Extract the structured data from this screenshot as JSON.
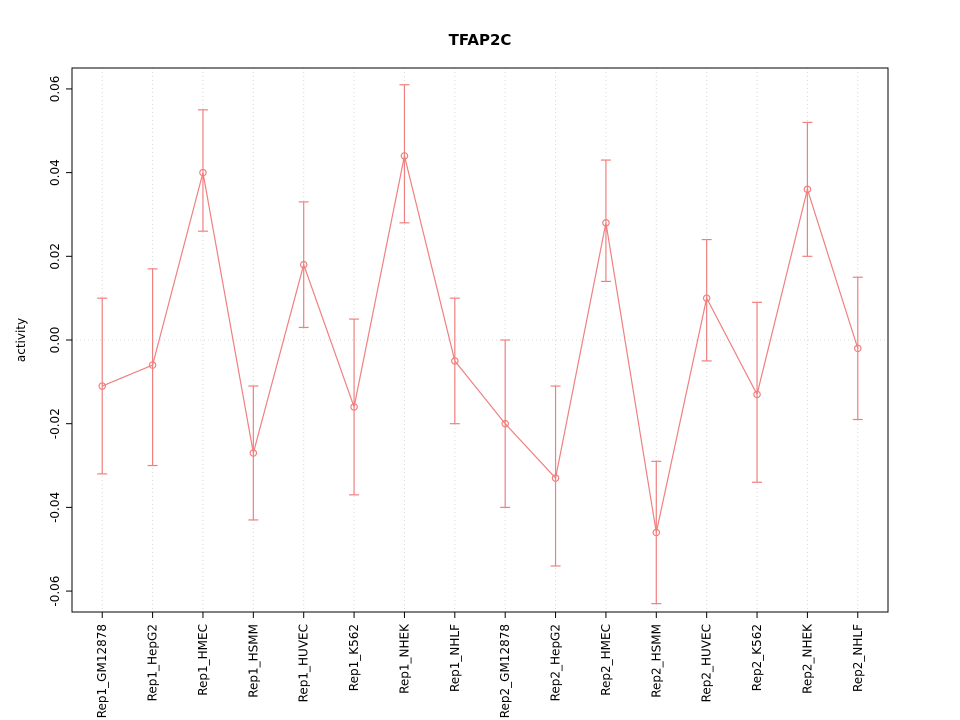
{
  "chart_data": {
    "type": "line",
    "title": "TFAP2C",
    "xlabel": "",
    "ylabel": "activity",
    "ylim": [
      -0.065,
      0.065
    ],
    "yticks": [
      -0.06,
      -0.04,
      -0.02,
      0.0,
      0.02,
      0.04,
      0.06
    ],
    "grid": {
      "vertical_dotted_per_category": true,
      "horizontal_dotted_at_zero": true,
      "color": "#d9d9d9"
    },
    "categories": [
      "Rep1_GM12878",
      "Rep1_HepG2",
      "Rep1_HMEC",
      "Rep1_HSMM",
      "Rep1_HUVEC",
      "Rep1_K562",
      "Rep1_NHEK",
      "Rep1_NHLF",
      "Rep2_GM12878",
      "Rep2_HepG2",
      "Rep2_HMEC",
      "Rep2_HSMM",
      "Rep2_HUVEC",
      "Rep2_K562",
      "Rep2_NHEK",
      "Rep2_NHLF"
    ],
    "series": [
      {
        "name": "activity",
        "color": "#f08080",
        "marker": "open-circle",
        "values": [
          -0.011,
          -0.006,
          0.04,
          -0.027,
          0.018,
          -0.016,
          0.044,
          -0.005,
          -0.02,
          -0.033,
          0.028,
          -0.046,
          0.01,
          -0.013,
          0.036,
          -0.002
        ],
        "error_low": [
          -0.032,
          -0.03,
          0.026,
          -0.043,
          0.003,
          -0.037,
          0.028,
          -0.02,
          -0.04,
          -0.054,
          0.014,
          -0.063,
          -0.005,
          -0.034,
          0.02,
          -0.019
        ],
        "error_high": [
          0.01,
          0.017,
          0.055,
          -0.011,
          0.033,
          0.005,
          0.061,
          0.01,
          0.0,
          -0.011,
          0.043,
          -0.029,
          0.024,
          0.009,
          0.052,
          0.015
        ]
      }
    ],
    "axis_color": "#000000"
  }
}
